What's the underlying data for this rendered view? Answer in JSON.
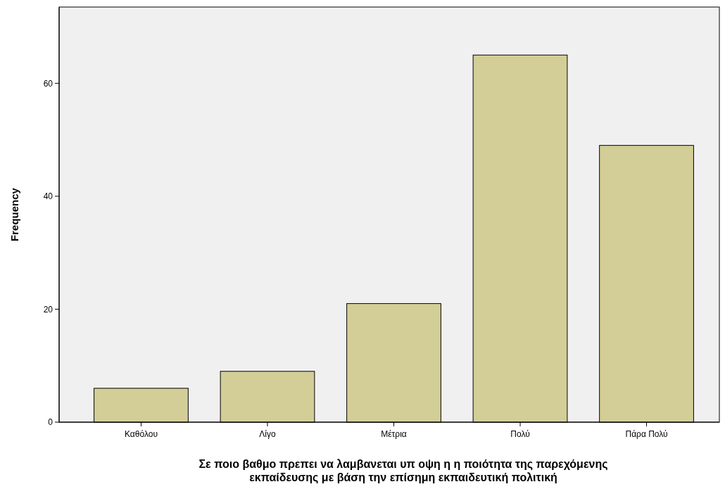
{
  "chart_data": {
    "type": "bar",
    "xlabel": "Σε ποιο βαθμο πρεπει να λαμβανεται υπ οψη η η ποιότητα της παρεχόμενης εκπαίδευσης με βάση την επίσημη εκπαιδευτική πολιτική",
    "ylabel": "Frequency",
    "categories": [
      "Καθόλου",
      "Λίγο",
      "Μέτρια",
      "Πολύ",
      "Πάρα Πολύ"
    ],
    "values": [
      6,
      9,
      21,
      65,
      49
    ],
    "color": "#d3ce97",
    "ylim": [
      0,
      73.5
    ],
    "yticks": [
      0,
      20,
      40,
      60
    ],
    "grid": false
  }
}
